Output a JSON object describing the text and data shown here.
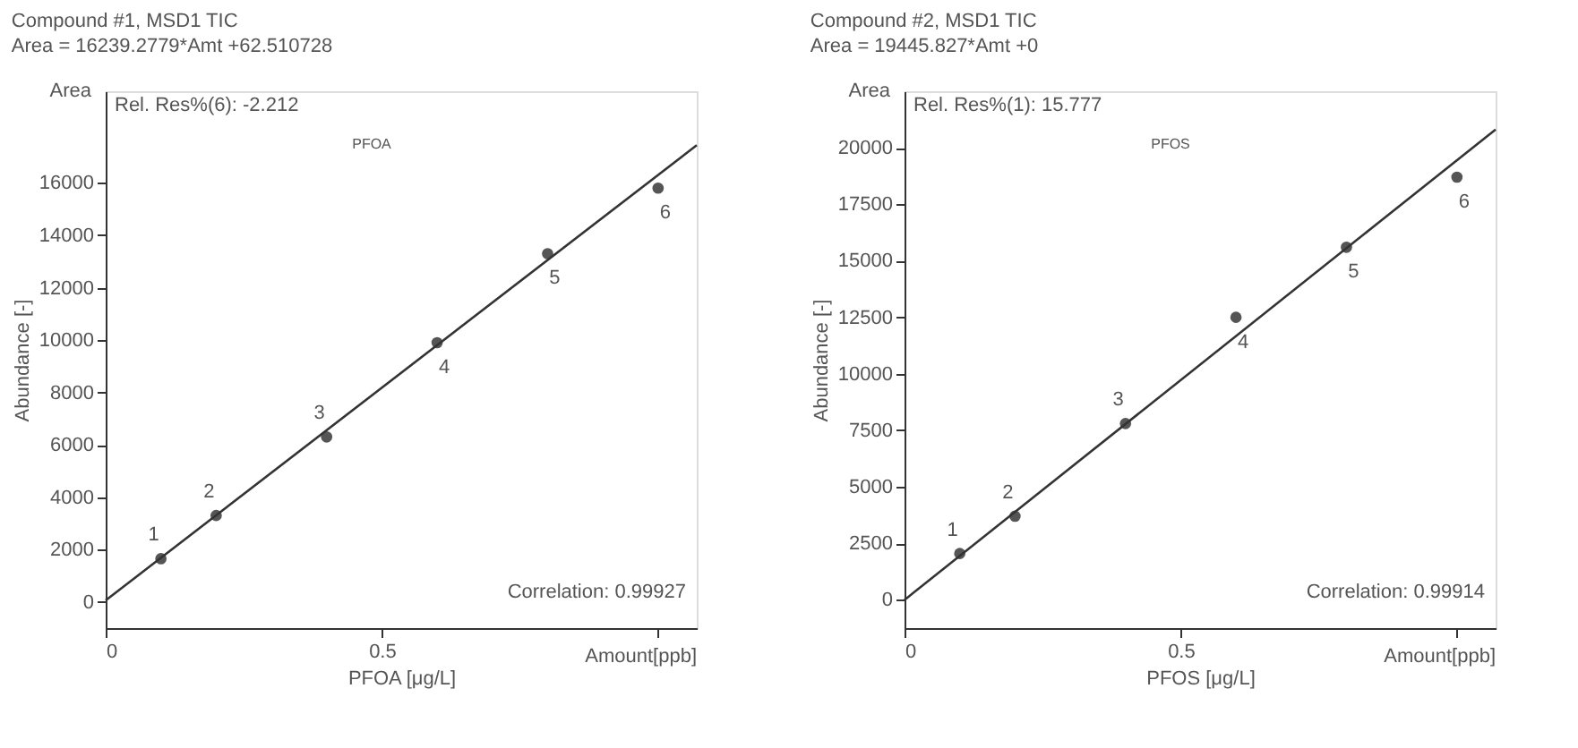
{
  "chart_data": [
    {
      "type": "scatter",
      "title": "Compound #1, MSD1 TIC",
      "subtitle": "Area = 16239.2779*Amt +62.510728",
      "xlabel": "PFOA  [μg/L]",
      "ylabel": "Abundance  [-]",
      "xlim": [
        0,
        1.07
      ],
      "ylim": [
        -1000,
        19500
      ],
      "xticks": [
        0,
        0.5,
        {
          "value": 1,
          "label": null
        }
      ],
      "yticks": [
        0,
        2000,
        4000,
        6000,
        8000,
        10000,
        12000,
        14000,
        16000
      ],
      "grid": false,
      "annotations": [
        "Area",
        "Rel. Res%(6): -2.212",
        "PFOA",
        "Correlation: 0.99927",
        "Amount[ppb]",
        {
          "text": "1",
          "x": 0.1,
          "y": 1650
        },
        {
          "text": "2",
          "x": 0.2,
          "y": 3300
        },
        {
          "text": "3",
          "x": 0.4,
          "y": 6300
        },
        {
          "text": "4",
          "x": 0.6,
          "y": 9900
        },
        {
          "text": "5",
          "x": 0.8,
          "y": 13300
        },
        {
          "text": "6",
          "x": 1.0,
          "y": 15800
        }
      ],
      "series": [
        {
          "color": "#555555",
          "marker": "circle",
          "x": [
            0.1,
            0.2,
            0.4,
            0.6,
            0.8,
            1.0
          ],
          "values": [
            1650,
            3300,
            6300,
            9900,
            13300,
            15800
          ]
        },
        {
          "type": "line",
          "color": "#333333",
          "line_style": "solid",
          "marker": "none",
          "x": [
            0,
            1.07
          ],
          "values": [
            60,
            17440
          ]
        }
      ]
    },
    {
      "type": "scatter",
      "title": "Compound #2, MSD1 TIC",
      "subtitle": "Area = 19445.827*Amt +0",
      "xlabel": "PFOS  [μg/L]",
      "ylabel": "Abundance [-]",
      "xlim": [
        0,
        1.07
      ],
      "ylim": [
        -1250,
        22500
      ],
      "xticks": [
        0,
        0.5,
        {
          "value": 1,
          "label": null
        }
      ],
      "yticks": [
        0,
        2500,
        5000,
        7500,
        10000,
        12500,
        15000,
        17500,
        20000
      ],
      "grid": false,
      "annotations": [
        "Area",
        "Rel. Res%(1): 15.777",
        "PFOS",
        "Correlation: 0.99914",
        "Amount[ppb]",
        {
          "text": "1",
          "x": 0.1,
          "y": 2050
        },
        {
          "text": "2",
          "x": 0.2,
          "y": 3700
        },
        {
          "text": "3",
          "x": 0.4,
          "y": 7800
        },
        {
          "text": "4",
          "x": 0.6,
          "y": 12500
        },
        {
          "text": "5",
          "x": 0.8,
          "y": 15600
        },
        {
          "text": "6",
          "x": 1.0,
          "y": 18700
        }
      ],
      "series": [
        {
          "color": "#555555",
          "marker": "circle",
          "x": [
            0.1,
            0.2,
            0.4,
            0.6,
            0.8,
            1.0
          ],
          "values": [
            2050,
            3700,
            7800,
            12500,
            15600,
            18700
          ]
        },
        {
          "type": "line",
          "color": "#333333",
          "line_style": "solid",
          "marker": "none",
          "x": [
            0,
            1.07
          ],
          "values": [
            0,
            20810
          ]
        }
      ]
    }
  ]
}
